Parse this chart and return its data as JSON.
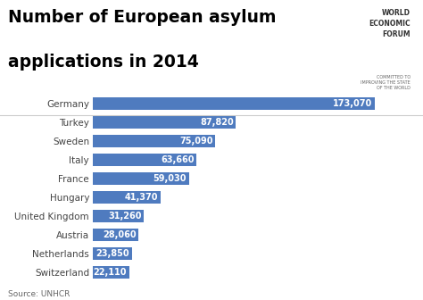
{
  "title_line1": "Number of European asylum",
  "title_line2": "applications in 2014",
  "source": "Source: UNHCR",
  "bar_color": "#4f7bbf",
  "label_color": "#ffffff",
  "background_color": "#ffffff",
  "categories": [
    "Germany",
    "Turkey",
    "Sweden",
    "Italy",
    "France",
    "Hungary",
    "United Kingdom",
    "Austria",
    "Netherlands",
    "Switzerland"
  ],
  "values": [
    173070,
    87820,
    75090,
    63660,
    59030,
    41370,
    31260,
    28060,
    23850,
    22110
  ],
  "labels": [
    "173,070",
    "87,820",
    "75,090",
    "63,660",
    "59,030",
    "41,370",
    "31,260",
    "28,060",
    "23,850",
    "22,110"
  ],
  "title_fontsize": 13.5,
  "tick_fontsize": 7.5,
  "label_fontsize": 7,
  "source_fontsize": 6.5,
  "wef_fontsize": 5.5,
  "xlim": [
    0,
    195000
  ],
  "separator_color": "#cccccc",
  "tick_color": "#444444"
}
